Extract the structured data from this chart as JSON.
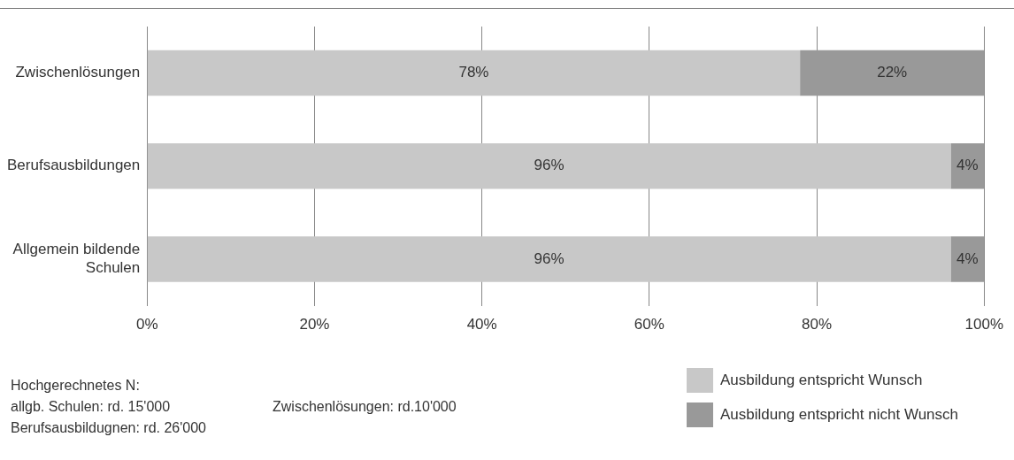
{
  "chart_data": {
    "type": "bar",
    "orientation": "horizontal",
    "stacked": true,
    "categories": [
      "Zwischenlösungen",
      "Berufsausbildungen",
      "Allgemein bildende Schulen"
    ],
    "series": [
      {
        "name": "Ausbildung entspricht Wunsch",
        "color": "#c8c8c8",
        "values": [
          78,
          96,
          96
        ],
        "value_labels": [
          "78%",
          "96%",
          "96%"
        ]
      },
      {
        "name": "Ausbildung entspricht nicht Wunsch",
        "color": "#999999",
        "values": [
          22,
          4,
          4
        ],
        "value_labels": [
          "22%",
          "4%",
          "4%"
        ]
      }
    ],
    "xlim": [
      0,
      100
    ],
    "xticks": [
      {
        "value": 0,
        "label": "0%"
      },
      {
        "value": 20,
        "label": "20%"
      },
      {
        "value": 40,
        "label": "40%"
      },
      {
        "value": 60,
        "label": "60%"
      },
      {
        "value": 80,
        "label": "80%"
      },
      {
        "value": 100,
        "label": "100%"
      }
    ],
    "grid": "x",
    "legend": "bottom right",
    "annotations": [
      "Hochgerechnetes N:",
      "allgb. Schulen: rd. 15'000",
      "Zwischenlösungen: rd.10'000",
      "Berufsausbildugnen: rd. 26'000"
    ]
  }
}
